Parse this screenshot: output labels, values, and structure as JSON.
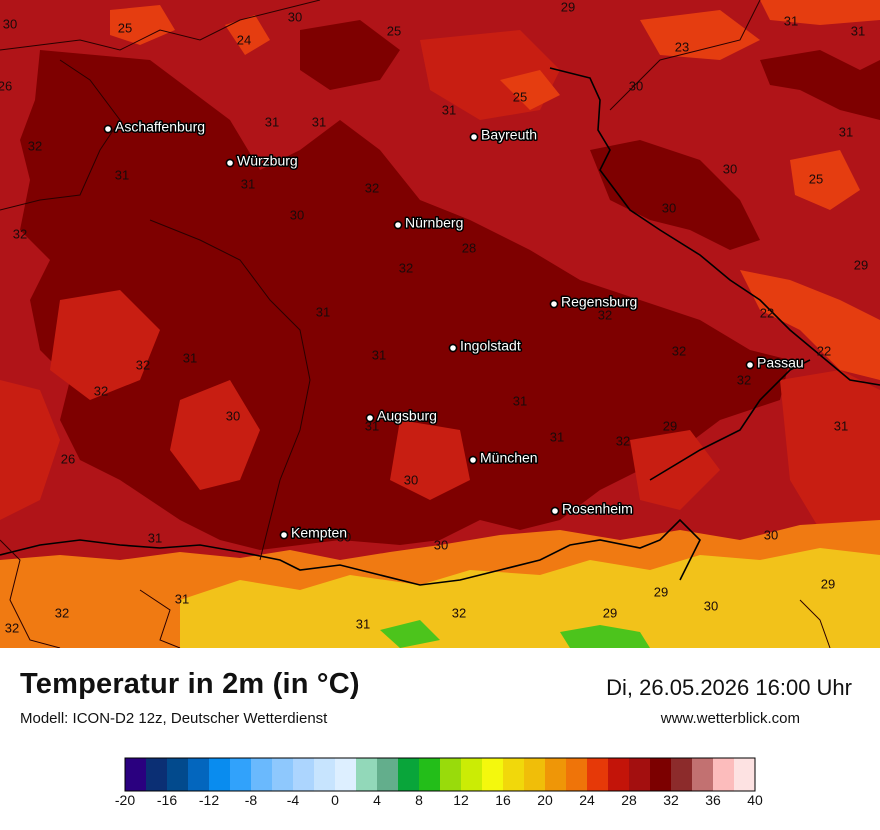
{
  "map": {
    "colors": {
      "background": "#b01418",
      "hot": "#7e0000",
      "warm": "#c81e12",
      "orange": "#e53d10",
      "alpine_orange": "#f07a12",
      "alpine_yellow": "#f2c21a",
      "alpine_green": "#4cc41c",
      "border": "#000000",
      "minor_border": "#2a0000"
    },
    "cities": [
      {
        "name": "Aschaffenburg"
      },
      {
        "name": "Würzburg"
      },
      {
        "name": "Bayreuth"
      },
      {
        "name": "Nürnberg"
      },
      {
        "name": "Regensburg"
      },
      {
        "name": "Ingolstadt"
      },
      {
        "name": "Passau"
      },
      {
        "name": "Augsburg"
      },
      {
        "name": "München"
      },
      {
        "name": "Rosenheim"
      },
      {
        "name": "Kempten"
      }
    ],
    "values": [
      "30",
      "30",
      "29",
      "31",
      "31",
      "25",
      "24",
      "25",
      "23",
      "26",
      "31",
      "31",
      "25",
      "30",
      "32",
      "31",
      "31",
      "30",
      "31",
      "30",
      "25",
      "32",
      "31",
      "28",
      "30",
      "32",
      "32",
      "29",
      "31",
      "32",
      "22",
      "31",
      "31",
      "32",
      "22",
      "32",
      "32",
      "32",
      "30",
      "31",
      "29",
      "31",
      "31",
      "32",
      "26",
      "30",
      "31",
      "29",
      "30",
      "30",
      "31",
      "30",
      "29",
      "32",
      "31",
      "29",
      "30",
      "32",
      "31",
      "32"
    ]
  },
  "footer": {
    "title": "Temperatur in 2m (in °C)",
    "subtitle": "Modell: ICON-D2 12z, Deutscher Wetterdienst",
    "datetime": "Di, 26.05.2026 16:00 Uhr",
    "website": "www.wetterblick.com"
  },
  "legend": {
    "colors": [
      "#2a007f",
      "#0b2f74",
      "#024a8d",
      "#0366be",
      "#098cef",
      "#31a2fb",
      "#6ab9fd",
      "#8ec8fd",
      "#acd5fe",
      "#c7e4fe",
      "#ddefff",
      "#92d8b9",
      "#63ae8c",
      "#09a53a",
      "#23be19",
      "#99db0b",
      "#cbec05",
      "#f4f80d",
      "#f1d80b",
      "#f0be09",
      "#ef9607",
      "#ef7409",
      "#e63908",
      "#c31409",
      "#a30f0f",
      "#7c0000",
      "#8c2b2b",
      "#c27171",
      "#fcbcbc",
      "#fde2e2"
    ],
    "ticks": [
      "-20",
      "-16",
      "-12",
      "-8",
      "-4",
      "0",
      "4",
      "8",
      "12",
      "16",
      "20",
      "24",
      "28",
      "32",
      "36",
      "40"
    ]
  }
}
